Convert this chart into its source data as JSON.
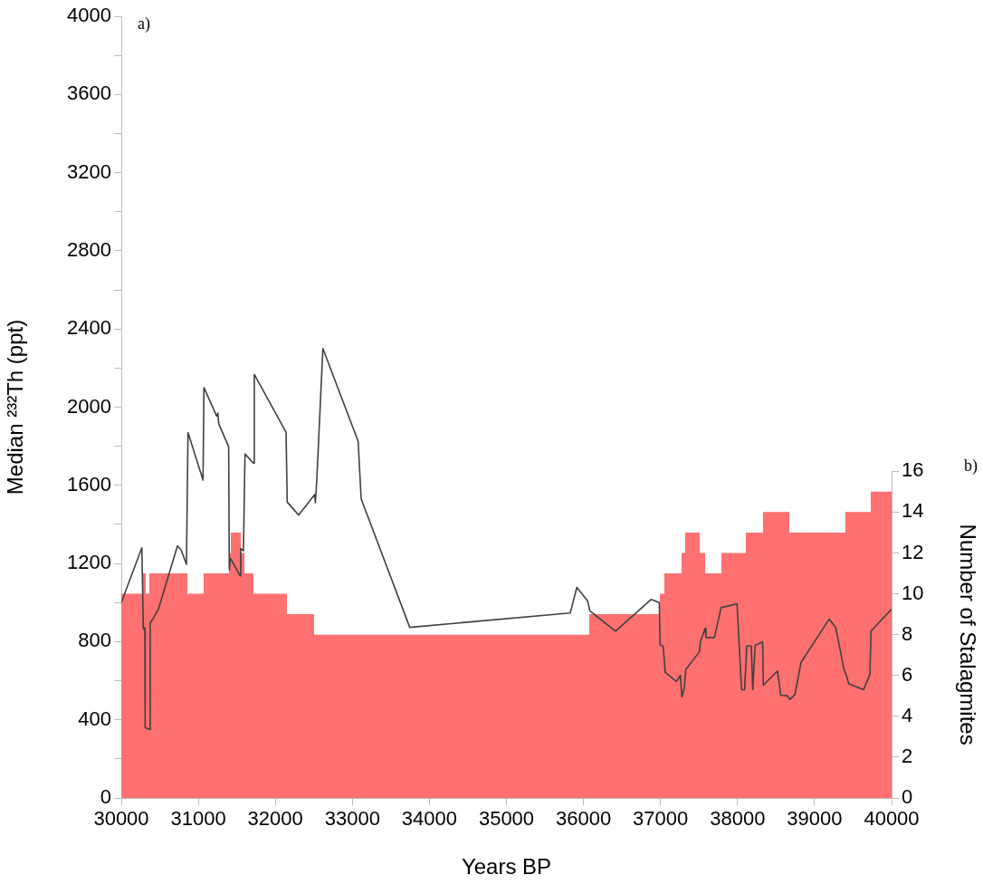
{
  "chart_data": {
    "type": "line",
    "xlabel": "Years BP",
    "ylabel": "Median ²³²Th (ppt)",
    "y2label": "Number of Stalagmites",
    "annotations": [
      "a)",
      "b)"
    ],
    "xlim": [
      30000,
      40000
    ],
    "xticks": [
      30000,
      31000,
      32000,
      33000,
      34000,
      35000,
      36000,
      37000,
      38000,
      39000,
      40000
    ],
    "ylim": [
      0,
      4000
    ],
    "yticks": [
      0,
      {
        "value": 200,
        "label": null
      },
      400,
      {
        "value": 600,
        "label": null
      },
      800,
      {
        "value": 1000,
        "label": null
      },
      1200,
      {
        "value": 1400,
        "label": null
      },
      1600,
      {
        "value": 1800,
        "label": null
      },
      2000,
      {
        "value": 2200,
        "label": null
      },
      2400,
      {
        "value": 2600,
        "label": null
      },
      2800,
      {
        "value": 3000,
        "label": null
      },
      3200,
      {
        "value": 3400,
        "label": null
      },
      3600,
      {
        "value": 3800,
        "label": null
      },
      4000
    ],
    "y2lim": [
      0,
      16
    ],
    "y2ticks": [
      0,
      2,
      4,
      6,
      8,
      10,
      12,
      14,
      16
    ],
    "grid": false,
    "legend": false,
    "series": [
      {
        "type": "area",
        "axis": "y2",
        "color": "#ff7070",
        "x": [
          30000,
          30270,
          30270,
          30317,
          30317,
          30364,
          30364,
          30858,
          30858,
          31069,
          31069,
          31398,
          31398,
          31422,
          31422,
          31551,
          31551,
          31598,
          31598,
          31716,
          31716,
          32150,
          32150,
          32503,
          32503,
          36075,
          36075,
          36992,
          36992,
          37050,
          37050,
          37274,
          37274,
          37321,
          37321,
          37509,
          37509,
          37580,
          37580,
          37791,
          37791,
          38108,
          38108,
          38331,
          38331,
          38672,
          38672,
          39401,
          39401,
          39730,
          39730,
          40000
        ],
        "values": [
          10,
          10,
          11,
          11,
          10,
          10,
          11,
          11,
          10,
          10,
          11,
          11,
          12,
          12,
          13,
          13,
          12,
          12,
          11,
          11,
          10,
          10,
          9,
          9,
          8,
          8,
          9,
          9,
          10,
          10,
          11,
          11,
          12,
          12,
          13,
          13,
          12,
          12,
          11,
          11,
          12,
          12,
          13,
          13,
          14,
          14,
          13,
          13,
          14,
          14,
          15,
          15
        ]
      },
      {
        "axis": "y",
        "color": "#404040",
        "x": [
          30000,
          30267,
          30286,
          30306,
          30310,
          30370,
          30375,
          30415,
          30482,
          30729,
          30776,
          30846,
          30866,
          31061,
          31073,
          31238,
          31254,
          31265,
          31394,
          31402,
          31417,
          31542,
          31550,
          31586,
          31606,
          31716,
          31727,
          32139,
          32154,
          32303,
          32511,
          32519,
          32538,
          32617,
          33075,
          33114,
          33745,
          35828,
          35914,
          36055,
          36083,
          36416,
          36878,
          36984,
          36995,
          37035,
          37062,
          37207,
          37258,
          37278,
          37309,
          37329,
          37505,
          37521,
          37580,
          37591,
          37700,
          37787,
          37994,
          38053,
          38092,
          38120,
          38179,
          38198,
          38229,
          38276,
          38327,
          38335,
          38519,
          38562,
          38648,
          38680,
          38746,
          38825,
          39189,
          39275,
          39385,
          39409,
          39444,
          39636,
          39718,
          39733,
          40000
        ],
        "values": [
          1000,
          1280,
          865,
          870,
          360,
          350,
          896,
          919,
          966,
          1290,
          1270,
          1196,
          1870,
          1627,
          2100,
          1954,
          1970,
          1915,
          1798,
          1168,
          1227,
          1137,
          1277,
          1265,
          1760,
          1713,
          2167,
          1872,
          1514,
          1448,
          1553,
          1511,
          1627,
          2300,
          1825,
          1531,
          873,
          947,
          1078,
          1008,
          958,
          853,
          1016,
          1000,
          783,
          776,
          643,
          596,
          627,
          518,
          562,
          658,
          748,
          803,
          868,
          821,
          821,
          974,
          993,
          554,
          554,
          779,
          779,
          554,
          782,
          789,
          798,
          577,
          650,
          526,
          523,
          504,
          530,
          694,
          915,
          873,
          652,
          632,
          585,
          554,
          632,
          854,
          966
        ]
      }
    ]
  }
}
